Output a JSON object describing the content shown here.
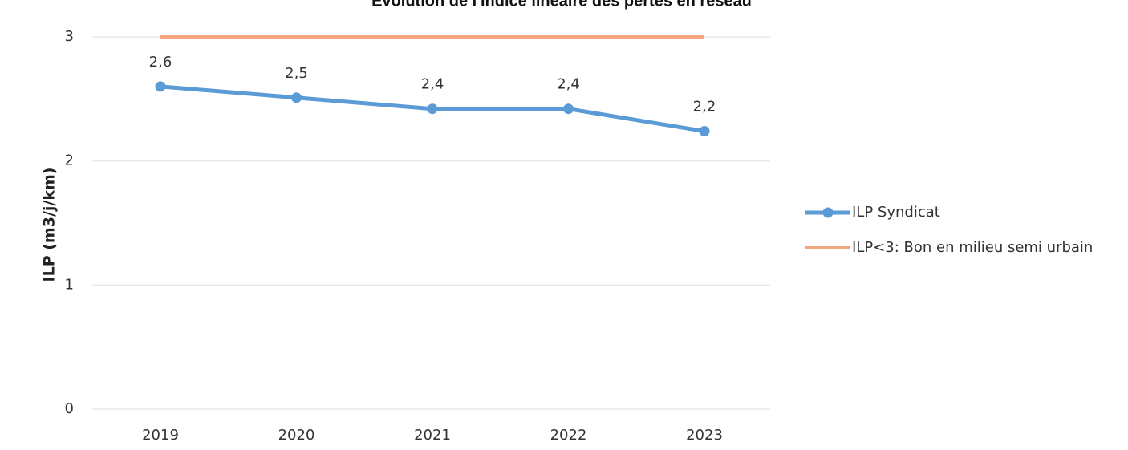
{
  "chart_data": {
    "type": "line",
    "title": "Evolution de l'indice linéaire des pertes en réseau",
    "y_label": "ILP (m3/j/km)",
    "categories": [
      "2019",
      "2020",
      "2021",
      "2022",
      "2023"
    ],
    "series": [
      {
        "name": "ILP Syndicat",
        "color": "#5b9bd5",
        "values": [
          2.6,
          2.51,
          2.42,
          2.42,
          2.24
        ],
        "value_labels": [
          "2,6",
          "2,5",
          "2,4",
          "2,4",
          "2,2"
        ],
        "markers": true
      },
      {
        "name": "ILP<3: Bon en milieu semi urbain",
        "color": "#f4a582",
        "values": [
          3,
          3,
          3,
          3,
          3
        ],
        "markers": false
      }
    ],
    "ylim": [
      0,
      3
    ],
    "yticks": [
      0,
      1,
      2,
      3
    ],
    "grid": true,
    "legend": "right"
  }
}
